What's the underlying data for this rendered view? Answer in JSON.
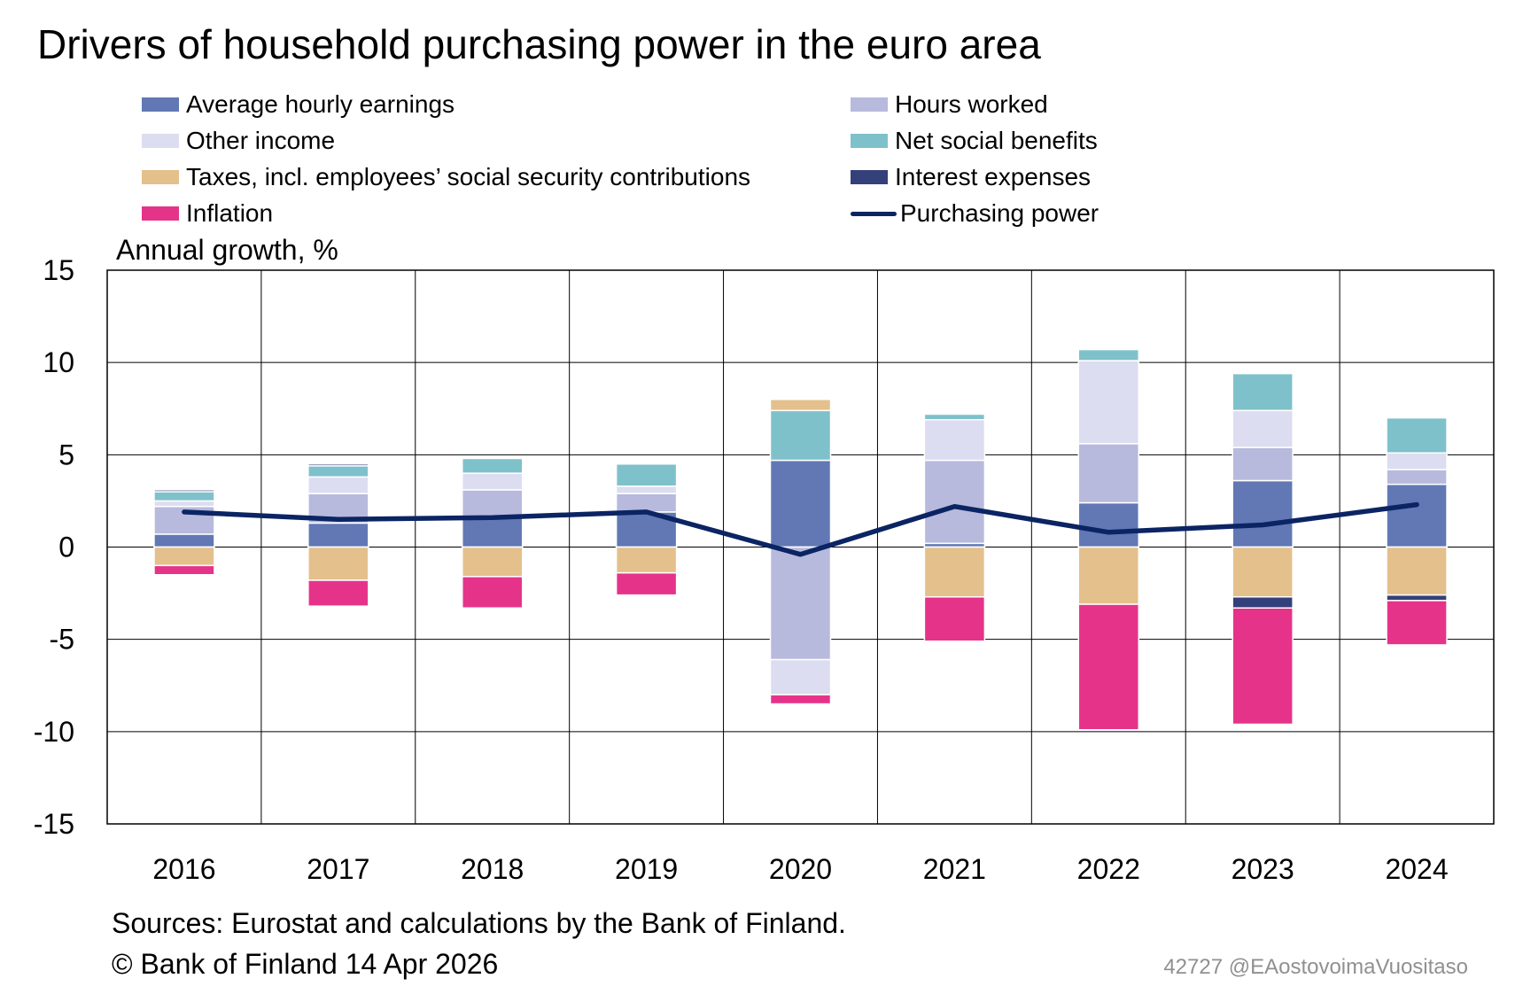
{
  "colors": {
    "avg_hourly_earnings": "#6178B4",
    "hours_worked": "#B7BADD",
    "other_income": "#DCDDF0",
    "net_social_benefits": "#7FC1CB",
    "taxes": "#E4C08C",
    "interest_expenses": "#34407A",
    "inflation": "#E6338A",
    "purchasing_power": "#0B2463"
  },
  "chart_data": {
    "type": "bar",
    "stacked": true,
    "title": "Drivers of household purchasing power in the euro area",
    "ylabel": "Annual growth, %",
    "ylim": [
      -15,
      15
    ],
    "yticks": [
      15,
      10,
      5,
      0,
      -5,
      -10,
      -15
    ],
    "grid": true,
    "legend_position": "top",
    "categories": [
      "2016",
      "2017",
      "2018",
      "2019",
      "2020",
      "2021",
      "2022",
      "2023",
      "2024"
    ],
    "series": [
      {
        "name": "Average hourly earnings",
        "key": "avg_hourly_earnings",
        "kind": "bar",
        "values": [
          0.7,
          1.3,
          1.6,
          1.9,
          4.7,
          0.2,
          2.4,
          3.6,
          3.4
        ]
      },
      {
        "name": "Hours worked",
        "key": "hours_worked",
        "kind": "bar",
        "values": [
          1.5,
          1.6,
          1.5,
          1.0,
          -6.1,
          4.5,
          3.2,
          1.8,
          0.8
        ]
      },
      {
        "name": "Other income",
        "key": "other_income",
        "kind": "bar",
        "values": [
          0.3,
          0.9,
          0.9,
          0.4,
          -1.9,
          2.2,
          4.5,
          2.0,
          0.9
        ]
      },
      {
        "name": "Net social benefits",
        "key": "net_social_benefits",
        "kind": "bar",
        "values": [
          0.5,
          0.6,
          0.8,
          1.2,
          2.7,
          0.3,
          0.6,
          2.0,
          1.9
        ]
      },
      {
        "name": "Taxes, incl. employees’ social security contributions",
        "key": "taxes",
        "kind": "bar",
        "values": [
          -1.0,
          -1.8,
          -1.6,
          -1.4,
          0.6,
          -2.7,
          -3.1,
          -2.7,
          -2.6
        ]
      },
      {
        "name": "Interest expenses",
        "key": "interest_expenses",
        "kind": "bar",
        "values": [
          0.1,
          0.1,
          0.0,
          0.0,
          0.0,
          0.0,
          0.0,
          -0.6,
          -0.3
        ]
      },
      {
        "name": "Inflation",
        "key": "inflation",
        "kind": "bar",
        "values": [
          -0.5,
          -1.4,
          -1.7,
          -1.2,
          -0.5,
          -2.4,
          -6.8,
          -6.3,
          -2.4
        ]
      },
      {
        "name": "Purchasing power",
        "key": "purchasing_power",
        "kind": "line",
        "values": [
          1.9,
          1.5,
          1.6,
          1.9,
          -0.4,
          2.2,
          0.8,
          1.2,
          2.3
        ]
      }
    ]
  },
  "footer": {
    "source": "Sources: Eurostat and calculations by the Bank of Finland.",
    "copyright": "© Bank of Finland 14 Apr 2026",
    "chart_id": "42727 @EAostovoimaVuositaso"
  }
}
